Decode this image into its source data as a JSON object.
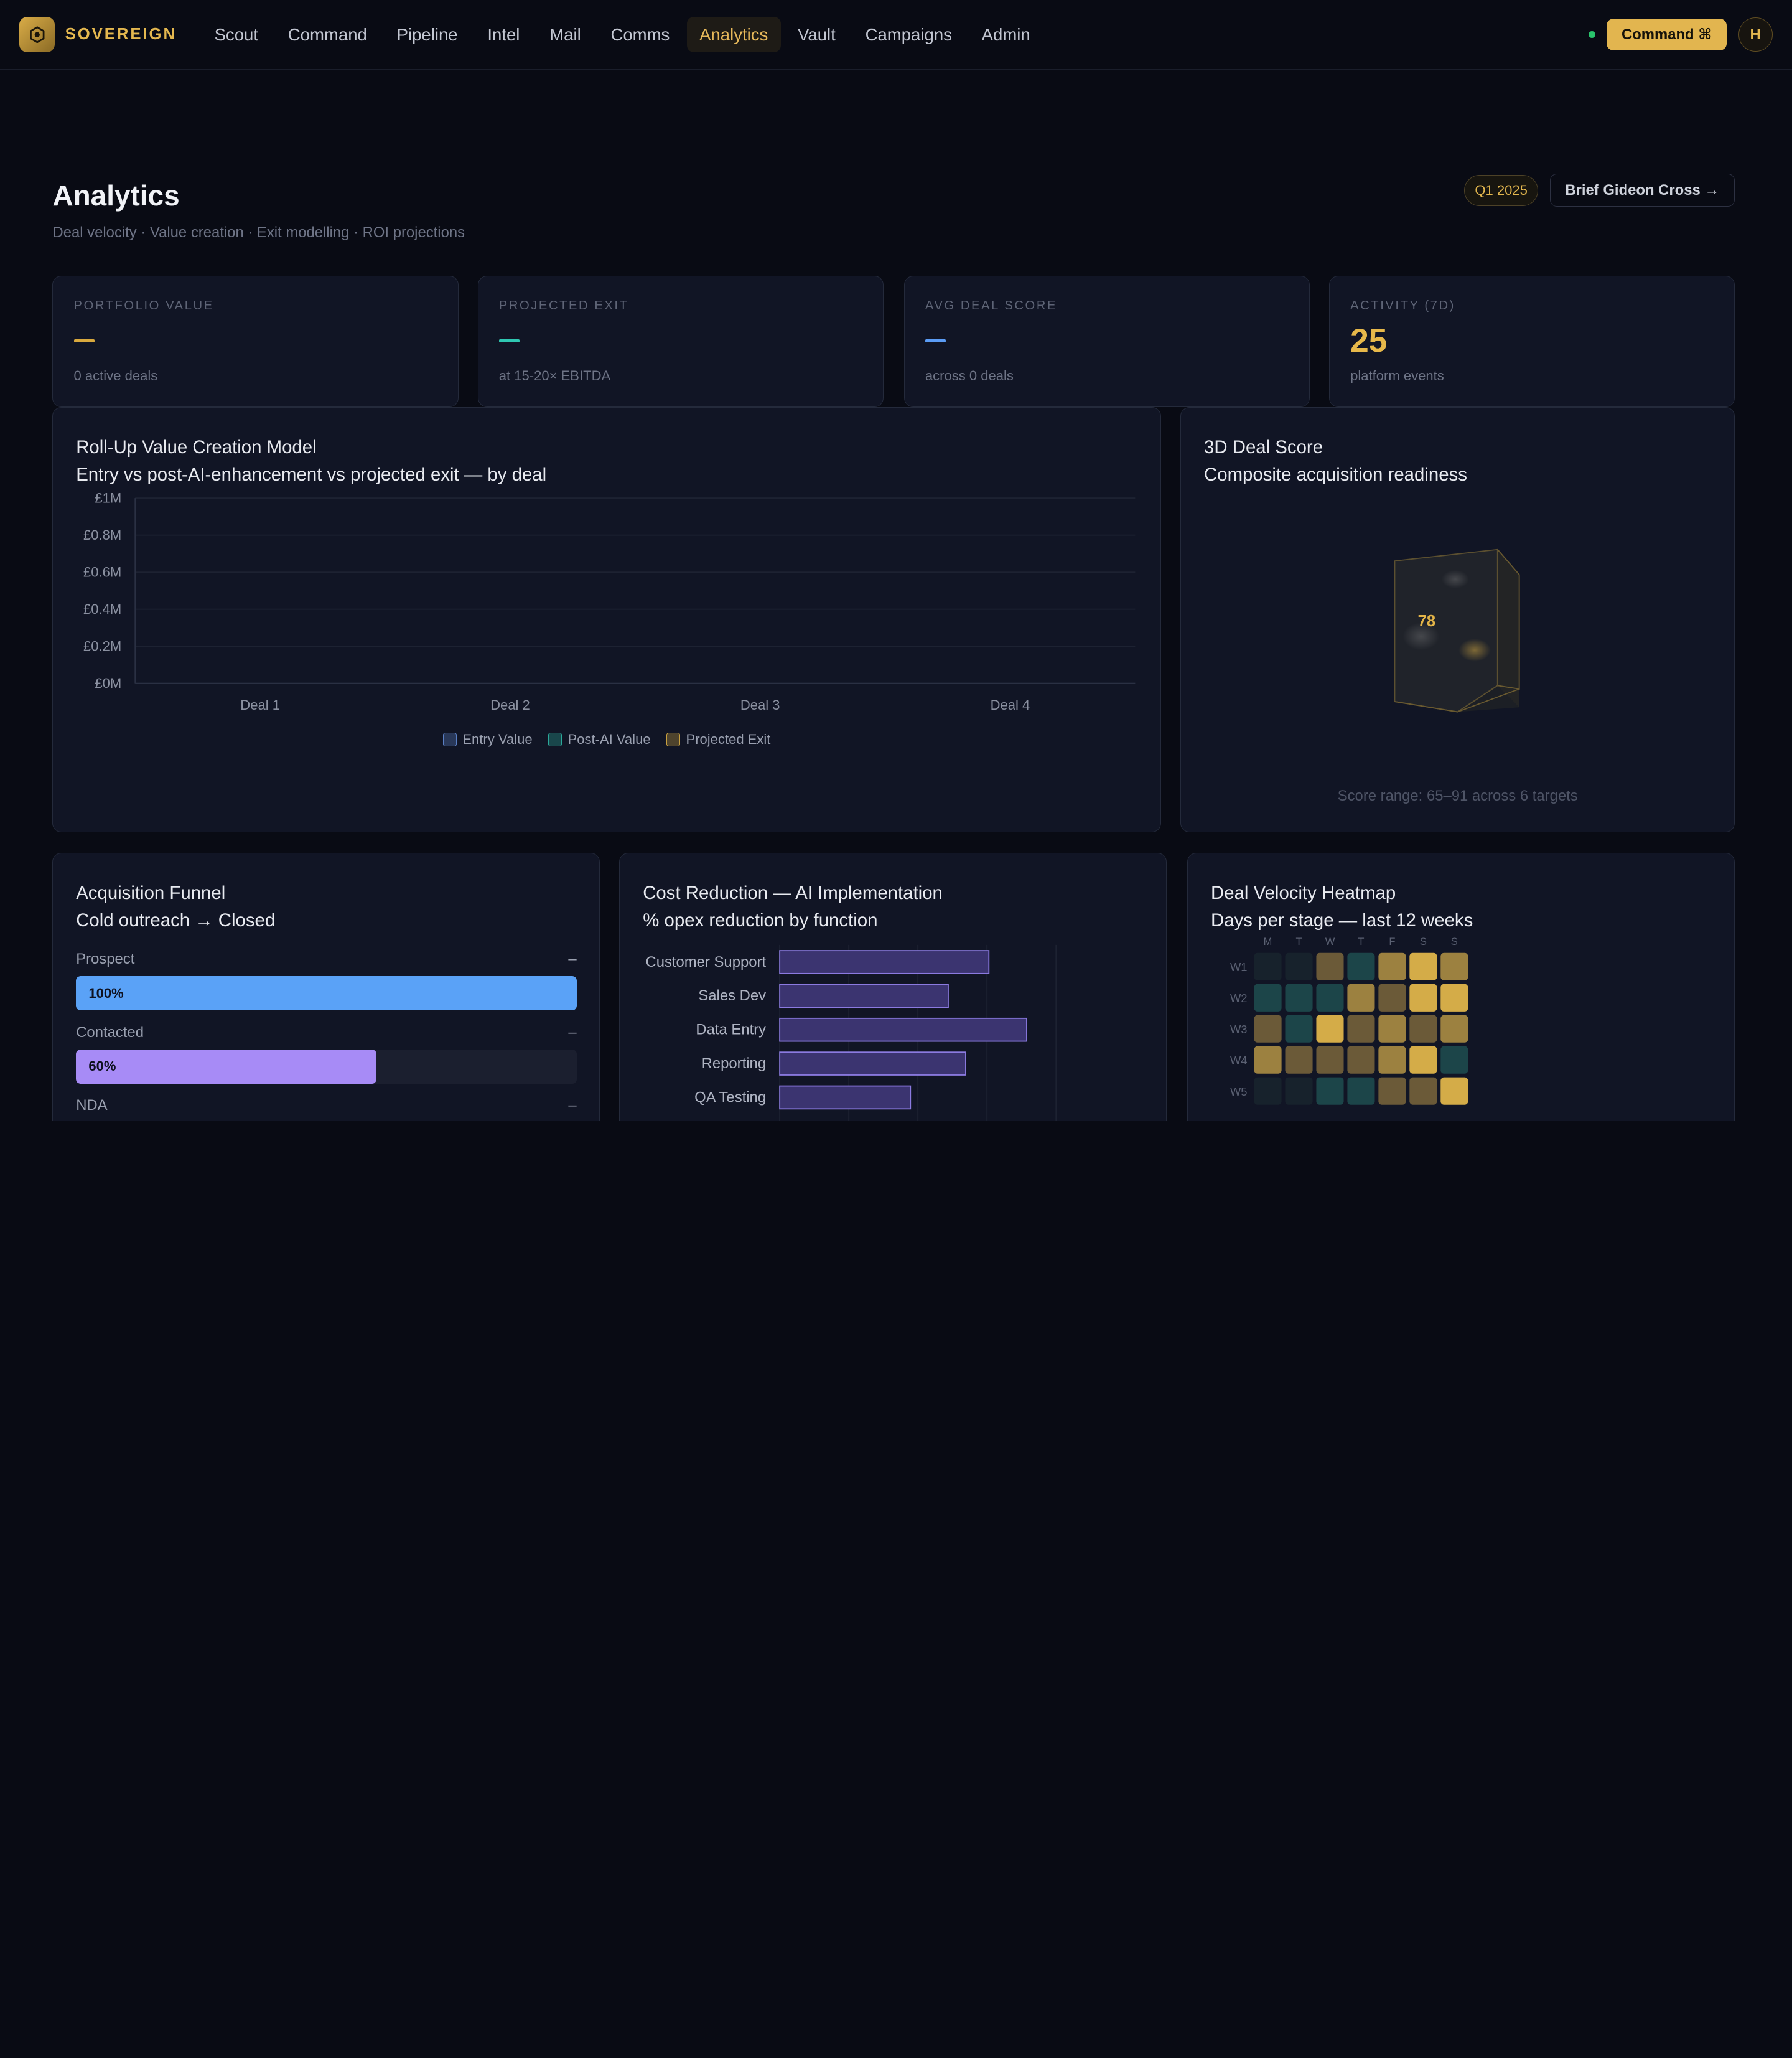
{
  "brand": {
    "name": "SOVEREIGN",
    "icon": "hexagon-logo-icon"
  },
  "nav": {
    "items": [
      "Scout",
      "Command",
      "Pipeline",
      "Intel",
      "Mail",
      "Comms",
      "Analytics",
      "Vault",
      "Campaigns",
      "Admin"
    ],
    "active": "Analytics"
  },
  "topbar": {
    "command_label": "Command ⌘",
    "avatar_initial": "H",
    "status_color": "#29c46c"
  },
  "header": {
    "title": "Analytics",
    "subtitle": "Deal velocity · Value creation · Exit modelling · ROI projections",
    "quarter_badge": "Q1 2025",
    "brief_button": "Brief Gideon Cross →"
  },
  "stats": [
    {
      "label": "PORTFOLIO VALUE",
      "value": "",
      "placeholder_color": "#d9a93e",
      "foot": "0 active deals"
    },
    {
      "label": "PROJECTED EXIT",
      "value": "",
      "placeholder_color": "#2fc7b2",
      "foot": "at 15-20× EBITDA"
    },
    {
      "label": "AVG DEAL SCORE",
      "value": "",
      "placeholder_color": "#5b9cf5",
      "foot": "across 0 deals"
    },
    {
      "label": "ACTIVITY (7D)",
      "value": "25",
      "foot": "platform events"
    }
  ],
  "value_chart": {
    "title": "Roll-Up Value Creation Model",
    "subtitle": "Entry vs post-AI-enhancement vs projected exit — by deal"
  },
  "score_card": {
    "title": "3D Deal Score",
    "subtitle": "Composite acquisition readiness",
    "cube_value": "78",
    "footer": "Score range: 65–91 across 6 targets"
  },
  "funnel": {
    "title": "Acquisition Funnel",
    "subtitle": "Cold outreach → Closed",
    "stages": [
      {
        "label": "Prospect",
        "count": "–",
        "percent": 100,
        "percent_label": "100%",
        "color": "#5aa2f7"
      },
      {
        "label": "Contacted",
        "count": "–",
        "percent": 60,
        "percent_label": "60%",
        "color": "#a78bf6"
      },
      {
        "label": "NDA",
        "count": "–"
      }
    ]
  },
  "cost_card": {
    "title": "Cost Reduction — AI Implementation",
    "subtitle": "% opex reduction by function"
  },
  "heatmap_card": {
    "title": "Deal Velocity Heatmap",
    "subtitle": "Days per stage — last 12 weeks"
  },
  "chart_data": [
    {
      "type": "bar",
      "categories": [
        "Deal 1",
        "Deal 2",
        "Deal 3",
        "Deal 4"
      ],
      "series": [
        {
          "name": "Entry Value",
          "values": [
            0,
            0,
            0,
            0
          ],
          "color": "#5a7fc4"
        },
        {
          "name": "Post-AI Value",
          "values": [
            0,
            0,
            0,
            0
          ],
          "color": "#2ba89a"
        },
        {
          "name": "Projected Exit",
          "values": [
            0,
            0,
            0,
            0
          ],
          "color": "#c8a040"
        }
      ],
      "y_ticks": [
        "£0M",
        "£0.2M",
        "£0.4M",
        "£0.6M",
        "£0.8M",
        "£1M"
      ],
      "ylim": [
        0,
        1
      ],
      "legend": "bottom",
      "grid": true
    },
    {
      "type": "bar",
      "orientation": "horizontal",
      "categories": [
        "Customer Support",
        "Sales Dev",
        "Data Entry",
        "Reporting",
        "QA Testing"
      ],
      "values": [
        36,
        29,
        42.5,
        32,
        22.5
      ],
      "xlim": [
        0,
        50
      ],
      "color": "#8b7ae0"
    },
    {
      "type": "heatmap",
      "columns": [
        "M",
        "T",
        "W",
        "T",
        "F",
        "S",
        "S"
      ],
      "rows": [
        "W1",
        "W2",
        "W3",
        "W4",
        "W5"
      ],
      "values": [
        [
          0,
          0,
          2,
          1,
          3,
          4,
          3
        ],
        [
          1,
          1,
          1,
          3,
          2,
          4,
          4
        ],
        [
          2,
          1,
          4,
          2,
          3,
          2,
          3
        ],
        [
          3,
          2,
          2,
          2,
          3,
          4,
          1
        ],
        [
          0,
          0,
          1,
          1,
          2,
          2,
          4
        ]
      ],
      "scale_colors": [
        "#17222c",
        "#1c4549",
        "#6b5a38",
        "#9c8140",
        "#d4ac48"
      ]
    }
  ]
}
